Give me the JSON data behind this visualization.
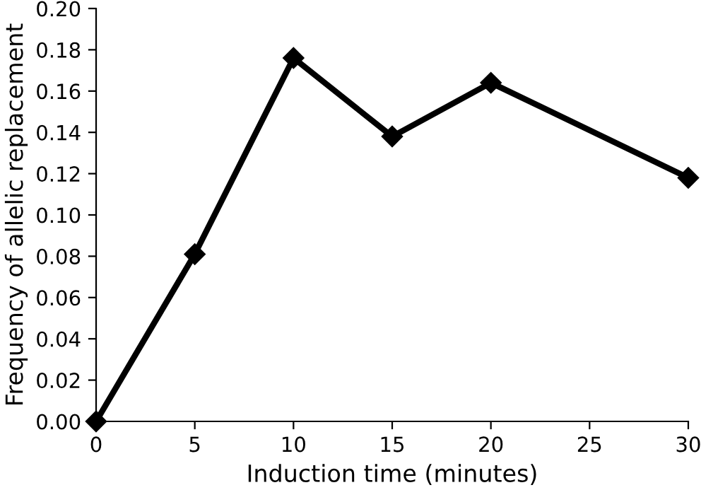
{
  "chart_data": {
    "type": "line",
    "xlabel": "Induction time (minutes)",
    "ylabel": "Frequency of allelic replacement",
    "x": [
      0,
      5,
      10,
      15,
      20,
      30
    ],
    "series": [
      {
        "color": "#000000",
        "values": [
          0.0,
          0.081,
          0.176,
          0.138,
          0.164,
          0.118
        ]
      }
    ],
    "xlim": [
      0,
      30
    ],
    "xticks": [
      0,
      5,
      10,
      15,
      20,
      25,
      30
    ],
    "ylim": [
      0,
      0.2
    ],
    "yticks": [
      {
        "value": 0,
        "label": "0.00"
      },
      {
        "value": 0.02,
        "label": "0.02"
      },
      {
        "value": 0.04,
        "label": "0.04"
      },
      {
        "value": 0.06,
        "label": "0.06"
      },
      {
        "value": 0.08,
        "label": "0.08"
      },
      {
        "value": 0.1,
        "label": "0.10"
      },
      {
        "value": 0.12,
        "label": "0.12"
      },
      {
        "value": 0.14,
        "label": "0.14"
      },
      {
        "value": 0.16,
        "label": "0.16"
      },
      {
        "value": 0.18,
        "label": "0.18"
      },
      {
        "value": 0.2,
        "label": "0.20"
      }
    ],
    "grid": false,
    "legend": false,
    "marker": "diamond",
    "line_style": "solid"
  }
}
